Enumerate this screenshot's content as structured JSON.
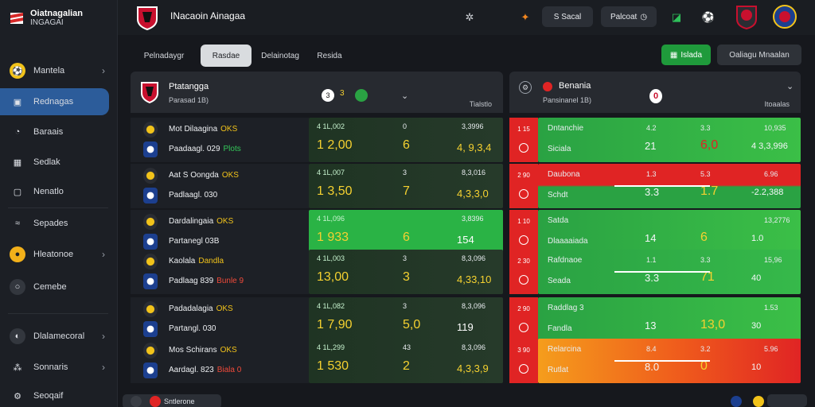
{
  "brand": {
    "line1": "Oiatnagalian",
    "line2": "INGAGAI"
  },
  "topbar": {
    "title": "INacaoin Ainagaa",
    "btn_search": "S Sacal",
    "btn_bet": "Palcoat"
  },
  "sidebar": {
    "items": [
      {
        "label": "Mantela",
        "icon": "ball-icon",
        "chev": "›"
      },
      {
        "label": "Rednagas",
        "icon": "card-icon",
        "chev": ""
      },
      {
        "label": "Baraais",
        "icon": "history-icon",
        "chev": ""
      },
      {
        "label": "Sedlak",
        "icon": "grid-icon",
        "chev": ""
      },
      {
        "label": "Nenatlo",
        "icon": "wallet-icon",
        "chev": ""
      },
      {
        "label": "Sepades",
        "icon": "wave-icon",
        "chev": ""
      },
      {
        "label": "Hleatonoe",
        "icon": "coin-icon",
        "chev": "›"
      },
      {
        "label": "Cemebe",
        "icon": "circle-icon",
        "chev": ""
      },
      {
        "label": "Dlalamecoral",
        "icon": "globe-icon",
        "chev": "›"
      },
      {
        "label": "Sonnaris",
        "icon": "users-icon",
        "chev": "›"
      },
      {
        "label": "Seoqaif",
        "icon": "settings-icon",
        "chev": ""
      }
    ]
  },
  "filters": {
    "tabs": [
      "Pelnadaygr",
      "Rasdae",
      "Delainotag",
      "Resida"
    ],
    "green_btn": "Islada",
    "gray_btn": "Oaliagu Mnaalan"
  },
  "left_panel": {
    "title": "Ptatangga",
    "subtitle": "Parasad 1B)",
    "score_a": "3",
    "score_b": "3",
    "right_label": "Tialstlo",
    "rows": [
      {
        "team1": "Mot Dilaagina",
        "tag1": "OKS",
        "team2": "Paadaagl. 029",
        "tag2": "Plots",
        "tag2_color": "green",
        "o1s": "4 1L,002",
        "o1b": "1 2,00",
        "o2s": "0",
        "o2b": "6",
        "o3s": "3,3996",
        "o3b": "4, 9,3,4"
      },
      {
        "team1": "Aat S Oongda",
        "tag1": "OKS",
        "team2": "Padlaagl. 030",
        "tag2": "",
        "tag2_color": "",
        "o1s": "4 1L,007",
        "o1b": "1 3,50",
        "o2s": "3",
        "o2b": "7",
        "o3s": "8,3,016",
        "o3b": "4,3,3,0"
      },
      {
        "team1": "Dardalingaia",
        "tag1": "OKS",
        "team2": "Partanegl 03B",
        "tag2": "",
        "tag2_color": "",
        "o1s": "4 1L,096",
        "o1b": "1 933",
        "o2s": "",
        "o2b": "6",
        "o3s": "3,8396",
        "o3b": "154"
      },
      {
        "team1": "Kaolala",
        "tag1": "Dandla",
        "team2": "Padlaag 839",
        "tag2": "Bunle 9",
        "tag2_color": "red",
        "o1s": "4 1L,003",
        "o1b": "13,00",
        "o2s": "3",
        "o2b": "3",
        "o3s": "8,3,096",
        "o3b": "4,33,10"
      },
      {
        "team1": "Padadalagia",
        "tag1": "OKS",
        "team2": "Partangl. 030",
        "tag2": "",
        "tag2_color": "",
        "o1s": "4 1L,082",
        "o1b": "1 7,90",
        "o2s": "3",
        "o2b": "5,0",
        "o3s": "8,3,096",
        "o3b": "119"
      },
      {
        "team1": "Mos Schirans",
        "tag1": "OKS",
        "team2": "Aardagl. 823",
        "tag2": "Biala 0",
        "tag2_color": "red",
        "o1s": "4 1L,299",
        "o1b": "1 530",
        "o2s": "43",
        "o2b": "2",
        "o3s": "8,3,096",
        "o3b": "4,3,3,9"
      }
    ]
  },
  "right_panel": {
    "title": "Benania",
    "subtitle": "Pansinanel 1B)",
    "right_label": "Itoaalas",
    "score": "0",
    "rows": [
      {
        "strip": "1 15",
        "l1": "Dntanchie",
        "l2": "Siciala",
        "a1": "4.2",
        "a2": "21",
        "b1": "3.3",
        "b2": "6,0",
        "c1": "10,935",
        "c2": "4 3,3,996",
        "bg": "green"
      },
      {
        "strip": "2 90",
        "l1": "Daubona",
        "l2": "Schdt",
        "a1": "1.3",
        "a2": "3.3",
        "b1": "5.3",
        "b2": "1.7",
        "c1": "6.96",
        "c2": "-2.2,388",
        "bg": "red-green"
      },
      {
        "strip": "1 10",
        "l1": "Satda",
        "l2": "Dlaaaaiada",
        "a1": "",
        "a2": "14",
        "b1": "",
        "b2": "6",
        "c1": "13,2776",
        "c2": "1.0",
        "bg": "green"
      },
      {
        "strip": "2 30",
        "l1": "Rafdnaoe",
        "l2": "Seada",
        "a1": "1.1",
        "a2": "3.3",
        "b1": "3.3",
        "b2": "71",
        "c1": "15,96",
        "c2": "40",
        "bg": "green-white"
      },
      {
        "strip": "2 90",
        "l1": "Raddlag 3",
        "l2": "Fandla",
        "a1": "",
        "a2": "13",
        "b1": "",
        "b2": "13,0",
        "c1": "1.53",
        "c2": "30",
        "bg": "green"
      },
      {
        "strip": "3 90",
        "l1": "Relarcina",
        "l2": "Rutlat",
        "a1": "8.4",
        "a2": "8.0",
        "b1": "3.2",
        "b2": "0",
        "c1": "5.96",
        "c2": "10",
        "bg": "orange-red"
      }
    ]
  },
  "bottom": {
    "label": "Sntlerone"
  },
  "colors": {
    "accent": "#2c5c9a",
    "green": "#2aa243",
    "red": "#e02424",
    "yellow": "#f5d130"
  }
}
